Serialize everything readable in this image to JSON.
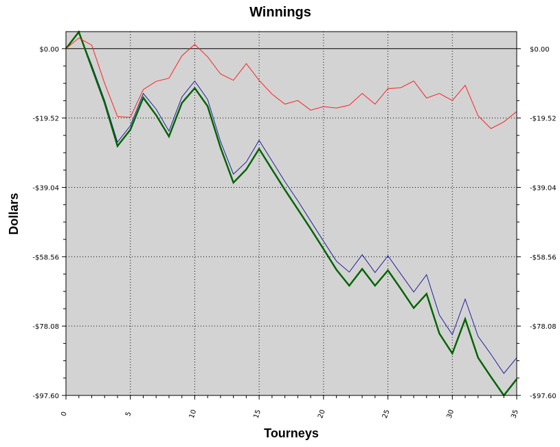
{
  "chart_data": {
    "type": "line",
    "title": "Winnings",
    "xlabel": "Tourneys",
    "ylabel": "Dollars",
    "xlim": [
      0,
      35
    ],
    "ylim": [
      -97.6,
      4.8
    ],
    "x_ticks": [
      0,
      5,
      10,
      15,
      20,
      25,
      30,
      35
    ],
    "x_tick_labels": [
      "0",
      "5",
      "10",
      "15",
      "20",
      "25",
      "30",
      "35"
    ],
    "y_ticks": [
      0,
      -19.52,
      -39.04,
      -58.56,
      -78.08,
      -97.6
    ],
    "y_tick_labels": [
      "$0.00",
      "-$19.52",
      "-$39.04",
      "-$58.56",
      "-$78.08",
      "-$97.60"
    ],
    "grid": true,
    "background_color": "#d3d3d3",
    "series": [
      {
        "color": "#1e1e9e",
        "x": [
          0,
          1,
          2,
          3,
          4,
          5,
          6,
          7,
          8,
          9,
          10,
          11,
          12,
          13,
          14,
          15,
          16,
          17,
          18,
          19,
          20,
          21,
          22,
          23,
          24,
          25,
          26,
          27,
          28,
          29,
          30,
          31,
          32,
          33,
          34,
          35
        ],
        "values": [
          0,
          4.7,
          -4.6,
          -14.5,
          -26.3,
          -21.7,
          -12.6,
          -17.0,
          -23.2,
          -13.6,
          -9.1,
          -14.3,
          -26.1,
          -35.3,
          -31.9,
          -25.8,
          -31.6,
          -37.4,
          -42.8,
          -48.5,
          -54.2,
          -59.8,
          -62.9,
          -58.0,
          -63.0,
          -58.3,
          -63.4,
          -68.5,
          -63.6,
          -75.0,
          -80.5,
          -70.5,
          -81.0,
          -86.0,
          -91.4,
          -87.0
        ]
      },
      {
        "color": "#006400",
        "x": [
          0,
          1,
          2,
          3,
          4,
          5,
          6,
          7,
          8,
          9,
          10,
          11,
          12,
          13,
          14,
          15,
          16,
          17,
          18,
          19,
          20,
          21,
          22,
          23,
          24,
          25,
          26,
          27,
          28,
          29,
          30,
          31,
          32,
          33,
          34,
          35
        ],
        "values": [
          0,
          4.7,
          -5.3,
          -15.2,
          -27.4,
          -22.8,
          -13.8,
          -18.7,
          -24.7,
          -15.3,
          -11.1,
          -16.2,
          -27.8,
          -37.7,
          -34.0,
          -28.2,
          -34.0,
          -39.7,
          -45.2,
          -50.7,
          -56.4,
          -62.2,
          -66.7,
          -62.0,
          -66.7,
          -62.4,
          -67.6,
          -73.0,
          -69.0,
          -80.2,
          -85.8,
          -76.1,
          -87.0,
          -92.4,
          -97.6,
          -93.0
        ]
      },
      {
        "color": "#ff2020",
        "x": [
          0,
          1,
          2,
          3,
          4,
          5,
          6,
          7,
          8,
          9,
          10,
          11,
          12,
          13,
          14,
          15,
          16,
          17,
          18,
          19,
          20,
          21,
          22,
          23,
          24,
          25,
          26,
          27,
          28,
          29,
          30,
          31,
          32,
          33,
          34,
          35
        ],
        "values": [
          0,
          3.0,
          1.0,
          -9.7,
          -19.1,
          -19.3,
          -11.5,
          -9.2,
          -8.3,
          -2.0,
          1.2,
          -2.3,
          -7.1,
          -8.9,
          -4.2,
          -8.9,
          -12.8,
          -15.6,
          -14.6,
          -17.3,
          -16.3,
          -16.7,
          -15.9,
          -12.6,
          -15.6,
          -11.2,
          -11.0,
          -9.1,
          -13.9,
          -12.6,
          -14.6,
          -10.3,
          -18.9,
          -22.5,
          -20.6,
          -17.7
        ]
      }
    ]
  }
}
